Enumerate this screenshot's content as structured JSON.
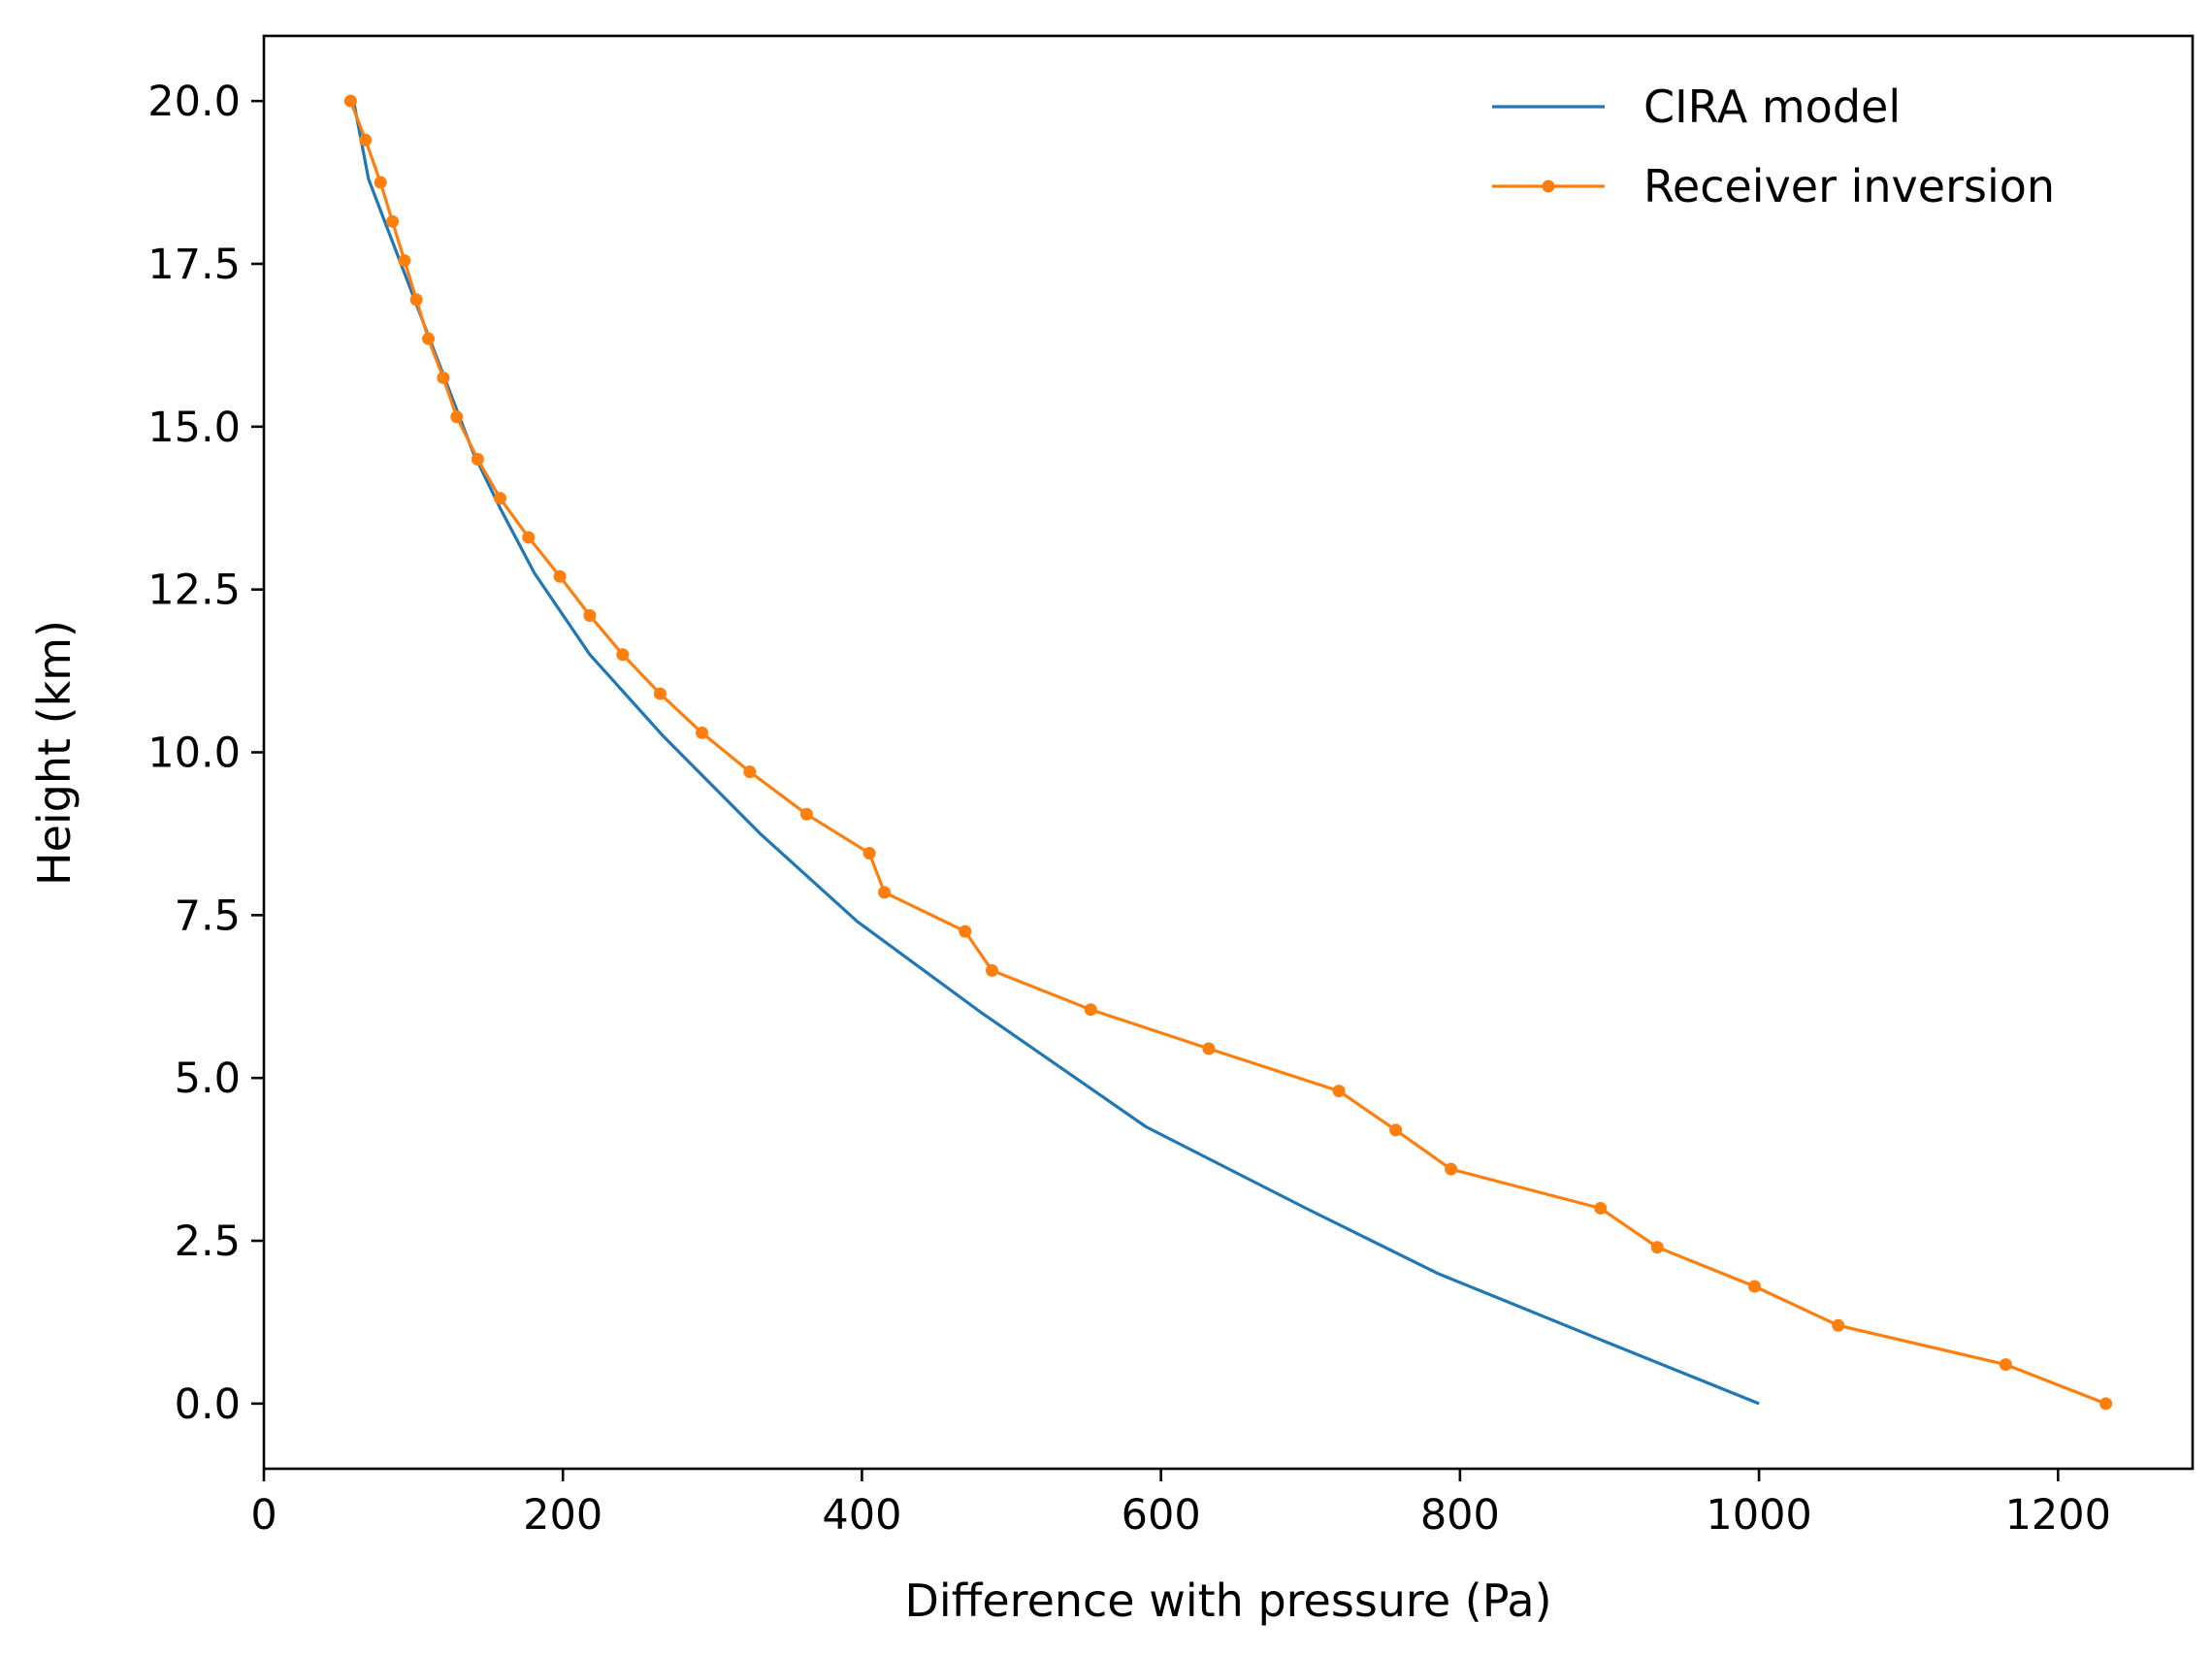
{
  "chart_data": {
    "type": "line",
    "title": "",
    "xlabel": "Difference with pressure (Pa)",
    "ylabel": "Height (km)",
    "xlim": [
      0,
      1290
    ],
    "ylim": [
      -1.0,
      21.0
    ],
    "x_ticks": [
      0,
      200,
      400,
      600,
      800,
      1000,
      1200
    ],
    "y_ticks": [
      0.0,
      2.5,
      5.0,
      7.5,
      10.0,
      12.5,
      15.0,
      17.5,
      20.0
    ],
    "x_tick_labels": [
      "0",
      "200",
      "400",
      "600",
      "800",
      "1000",
      "1200"
    ],
    "y_tick_labels": [
      "0.0",
      "2.5",
      "5.0",
      "7.5",
      "10.0",
      "12.5",
      "15.0",
      "17.5",
      "20.0"
    ],
    "grid": false,
    "legend_position": "top-right",
    "series": [
      {
        "name": "CIRA model",
        "color": "#1f77b4",
        "marker": "none",
        "x": [
          1000,
          892,
          785,
          697,
          590,
          480,
          397,
          332,
          267,
          218,
          181,
          158,
          140,
          130,
          120,
          110,
          100,
          90,
          80,
          70,
          60
        ],
        "y": [
          0.0,
          1.0,
          2.0,
          3.0,
          4.25,
          6.0,
          7.4,
          8.75,
          10.25,
          11.5,
          12.75,
          13.75,
          14.6,
          15.2,
          15.8,
          16.4,
          17.0,
          17.6,
          18.2,
          18.8,
          20.0
        ]
      },
      {
        "name": "Receiver inversion",
        "color": "#ff7f0e",
        "marker": "dot",
        "x": [
          1232,
          1165,
          1053,
          997,
          932,
          894,
          794,
          757,
          719,
          632,
          553,
          487,
          469,
          415,
          405,
          363,
          325,
          293,
          265,
          240,
          218,
          198,
          177,
          158,
          143,
          129,
          120,
          110,
          102,
          94,
          86,
          78,
          68,
          58
        ],
        "y": [
          0.0,
          0.6,
          1.2,
          1.8,
          2.4,
          3.0,
          3.6,
          4.2,
          4.8,
          5.45,
          6.05,
          6.65,
          7.25,
          7.85,
          8.45,
          9.05,
          9.7,
          10.3,
          10.9,
          11.5,
          12.1,
          12.7,
          13.3,
          13.9,
          14.5,
          15.15,
          15.75,
          16.35,
          16.95,
          17.55,
          18.15,
          18.75,
          19.4,
          20.0
        ]
      }
    ]
  }
}
